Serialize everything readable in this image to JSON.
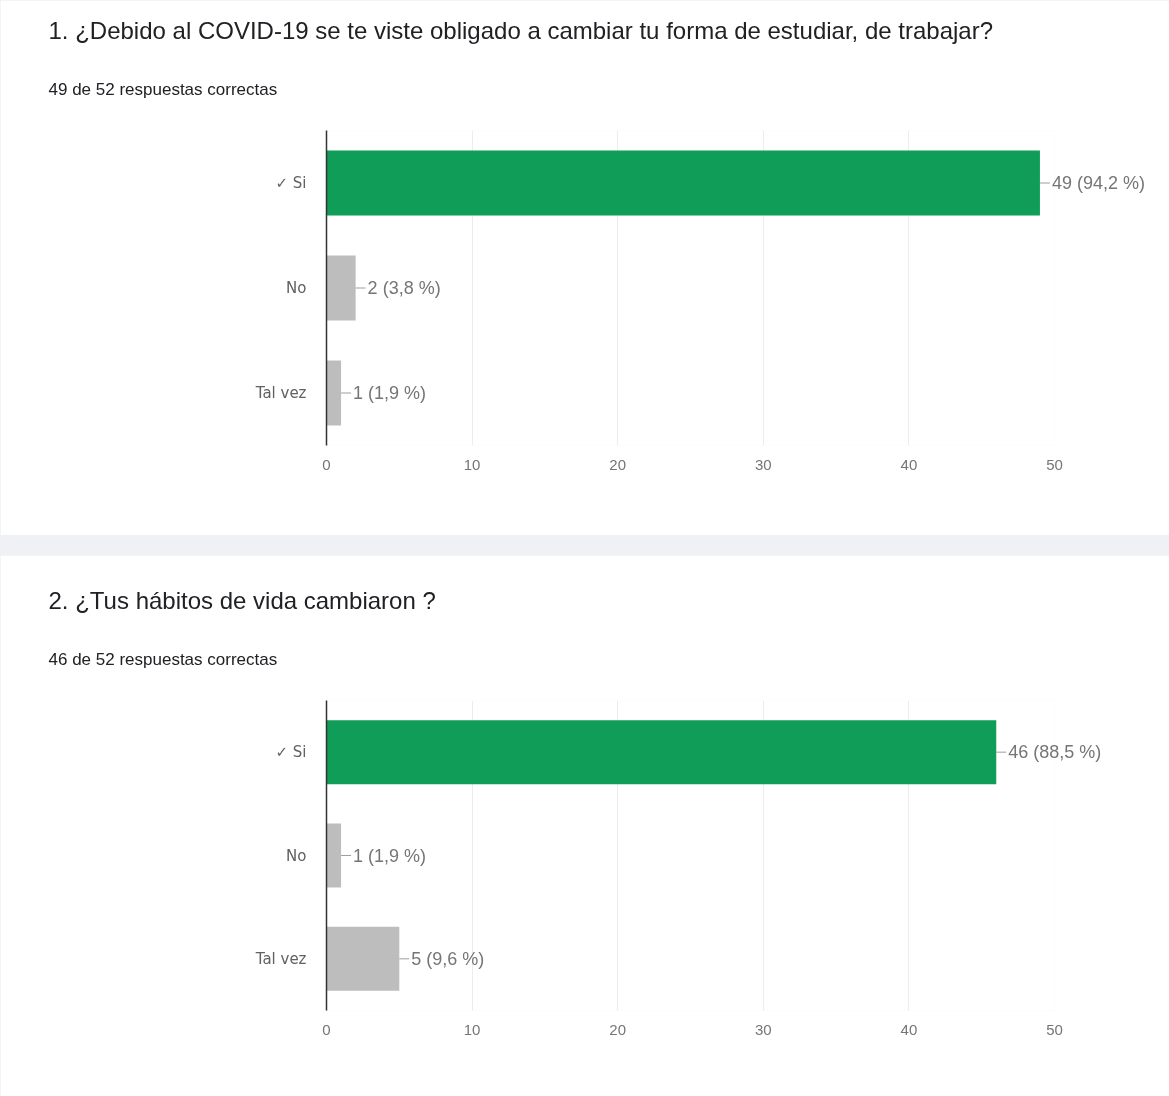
{
  "chart_data": [
    {
      "type": "bar",
      "orientation": "horizontal",
      "title": "1. ¿Debido al COVID-19 se te viste obligado a cambiar tu forma de estudiar, de trabajar?",
      "subtitle": "49 de 52 respuestas correctas",
      "categories": [
        "✓ Si",
        "No",
        "Tal vez"
      ],
      "values": [
        49,
        2,
        1
      ],
      "colors": [
        "#0f9d58",
        "#bdbdbd",
        "#bdbdbd"
      ],
      "value_labels": [
        "49 (94,2 %)",
        "2 (3,8 %)",
        "1 (1,9 %)"
      ],
      "xlim": [
        0,
        50
      ],
      "xticks": [
        0,
        10,
        20,
        30,
        40,
        50
      ],
      "grid": "x"
    },
    {
      "type": "bar",
      "orientation": "horizontal",
      "title": "2. ¿Tus hábitos de vida cambiaron ?",
      "subtitle": "46 de 52 respuestas correctas",
      "categories": [
        "✓ Si",
        "No",
        "Tal vez"
      ],
      "values": [
        46,
        1,
        5
      ],
      "colors": [
        "#0f9d58",
        "#bdbdbd",
        "#bdbdbd"
      ],
      "value_labels": [
        "46 (88,5 %)",
        "1 (1,9 %)",
        "5 (9,6 %)"
      ],
      "xlim": [
        0,
        50
      ],
      "xticks": [
        0,
        10,
        20,
        30,
        40,
        50
      ],
      "grid": "x"
    }
  ]
}
